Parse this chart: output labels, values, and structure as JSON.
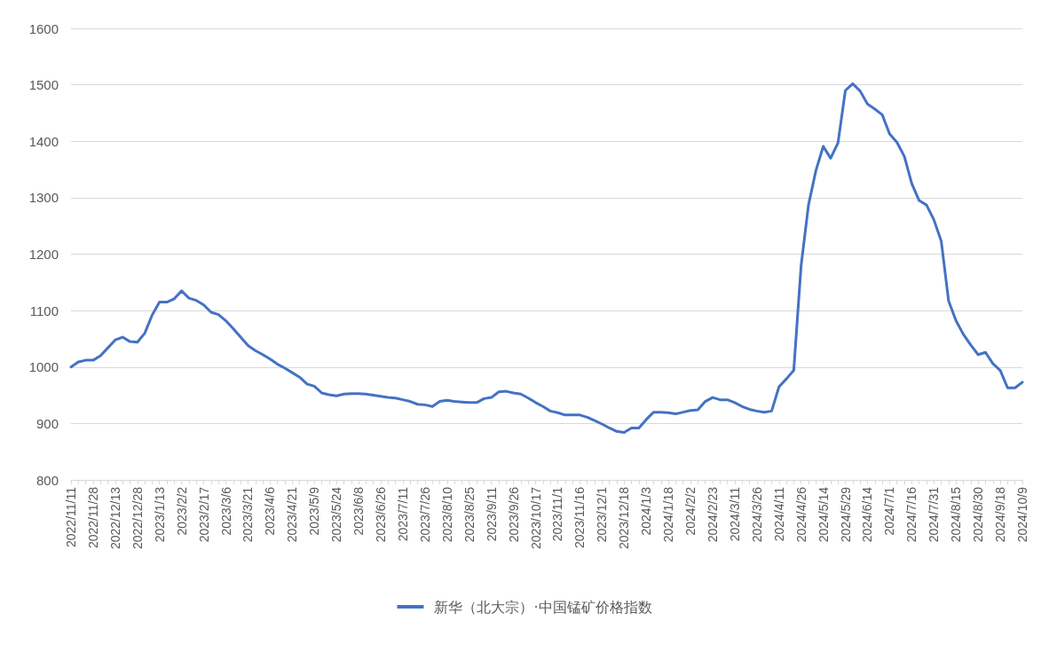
{
  "chart_data": {
    "type": "line",
    "categories": [
      "2022/11/11",
      null,
      null,
      "2022/11/28",
      null,
      null,
      "2022/12/13",
      null,
      null,
      "2022/12/28",
      null,
      null,
      "2023/1/13",
      null,
      null,
      "2023/2/2",
      null,
      null,
      "2023/2/17",
      null,
      null,
      "2023/3/6",
      null,
      null,
      "2023/3/21",
      null,
      null,
      "2023/4/6",
      null,
      null,
      "2023/4/21",
      null,
      null,
      "2023/5/9",
      null,
      null,
      "2023/5/24",
      null,
      null,
      "2023/6/8",
      null,
      null,
      "2023/6/26",
      null,
      null,
      "2023/7/11",
      null,
      null,
      "2023/7/26",
      null,
      null,
      "2023/8/10",
      null,
      null,
      "2023/8/25",
      null,
      null,
      "2023/9/11",
      null,
      null,
      "2023/9/26",
      null,
      null,
      "2023/10/17",
      null,
      null,
      "2023/11/1",
      null,
      null,
      "2023/11/16",
      null,
      null,
      "2023/12/1",
      null,
      null,
      "2023/12/18",
      null,
      null,
      "2024/1/3",
      null,
      null,
      "2024/1/18",
      null,
      null,
      "2024/2/2",
      null,
      null,
      "2024/2/23",
      null,
      null,
      "2024/3/11",
      null,
      null,
      "2024/3/26",
      null,
      null,
      "2024/4/11",
      null,
      null,
      "2024/4/26",
      null,
      null,
      "2024/5/14",
      null,
      null,
      "2024/5/29",
      null,
      null,
      "2024/6/14",
      null,
      null,
      "2024/7/1",
      null,
      null,
      "2024/7/16",
      null,
      null,
      "2024/7/31",
      null,
      null,
      "2024/8/15",
      null,
      null,
      "2024/8/30",
      null,
      null,
      "2024/9/18",
      null,
      null,
      "2024/10/9"
    ],
    "series": [
      {
        "name": "新华（北大宗）·中国锰矿价格指数",
        "color": "#4472c4",
        "values": [
          1000,
          1009,
          1012,
          1012,
          1020,
          1034,
          1048,
          1053,
          1045,
          1044,
          1060,
          1092,
          1115,
          1115,
          1121,
          1135,
          1122,
          1118,
          1110,
          1097,
          1093,
          1082,
          1068,
          1053,
          1038,
          1029,
          1022,
          1014,
          1005,
          998,
          990,
          982,
          970,
          966,
          954,
          951,
          949,
          952,
          953,
          953,
          952,
          950,
          948,
          946,
          945,
          942,
          939,
          934,
          933,
          930,
          939,
          941,
          939,
          938,
          937,
          937,
          944,
          946,
          956,
          957,
          954,
          952,
          945,
          937,
          930,
          922,
          919,
          915,
          915,
          915,
          911,
          905,
          899,
          892,
          886,
          884,
          892,
          892,
          907,
          920,
          920,
          919,
          917,
          920,
          923,
          924,
          939,
          946,
          942,
          942,
          937,
          930,
          925,
          922,
          920,
          922,
          965,
          979,
          994,
          1180,
          1287,
          1348,
          1391,
          1370,
          1397,
          1490,
          1502,
          1489,
          1466,
          1457,
          1447,
          1413,
          1398,
          1373,
          1325,
          1295,
          1287,
          1261,
          1223,
          1117,
          1082,
          1058,
          1039,
          1022,
          1026,
          1006,
          994,
          963,
          963,
          973
        ]
      }
    ],
    "ylim": [
      800,
      1600
    ],
    "yticks": [
      800,
      900,
      1000,
      1100,
      1200,
      1300,
      1400,
      1500,
      1600
    ],
    "grid": "y",
    "legend": "bottom",
    "marker": "none",
    "line_style": "solid"
  }
}
